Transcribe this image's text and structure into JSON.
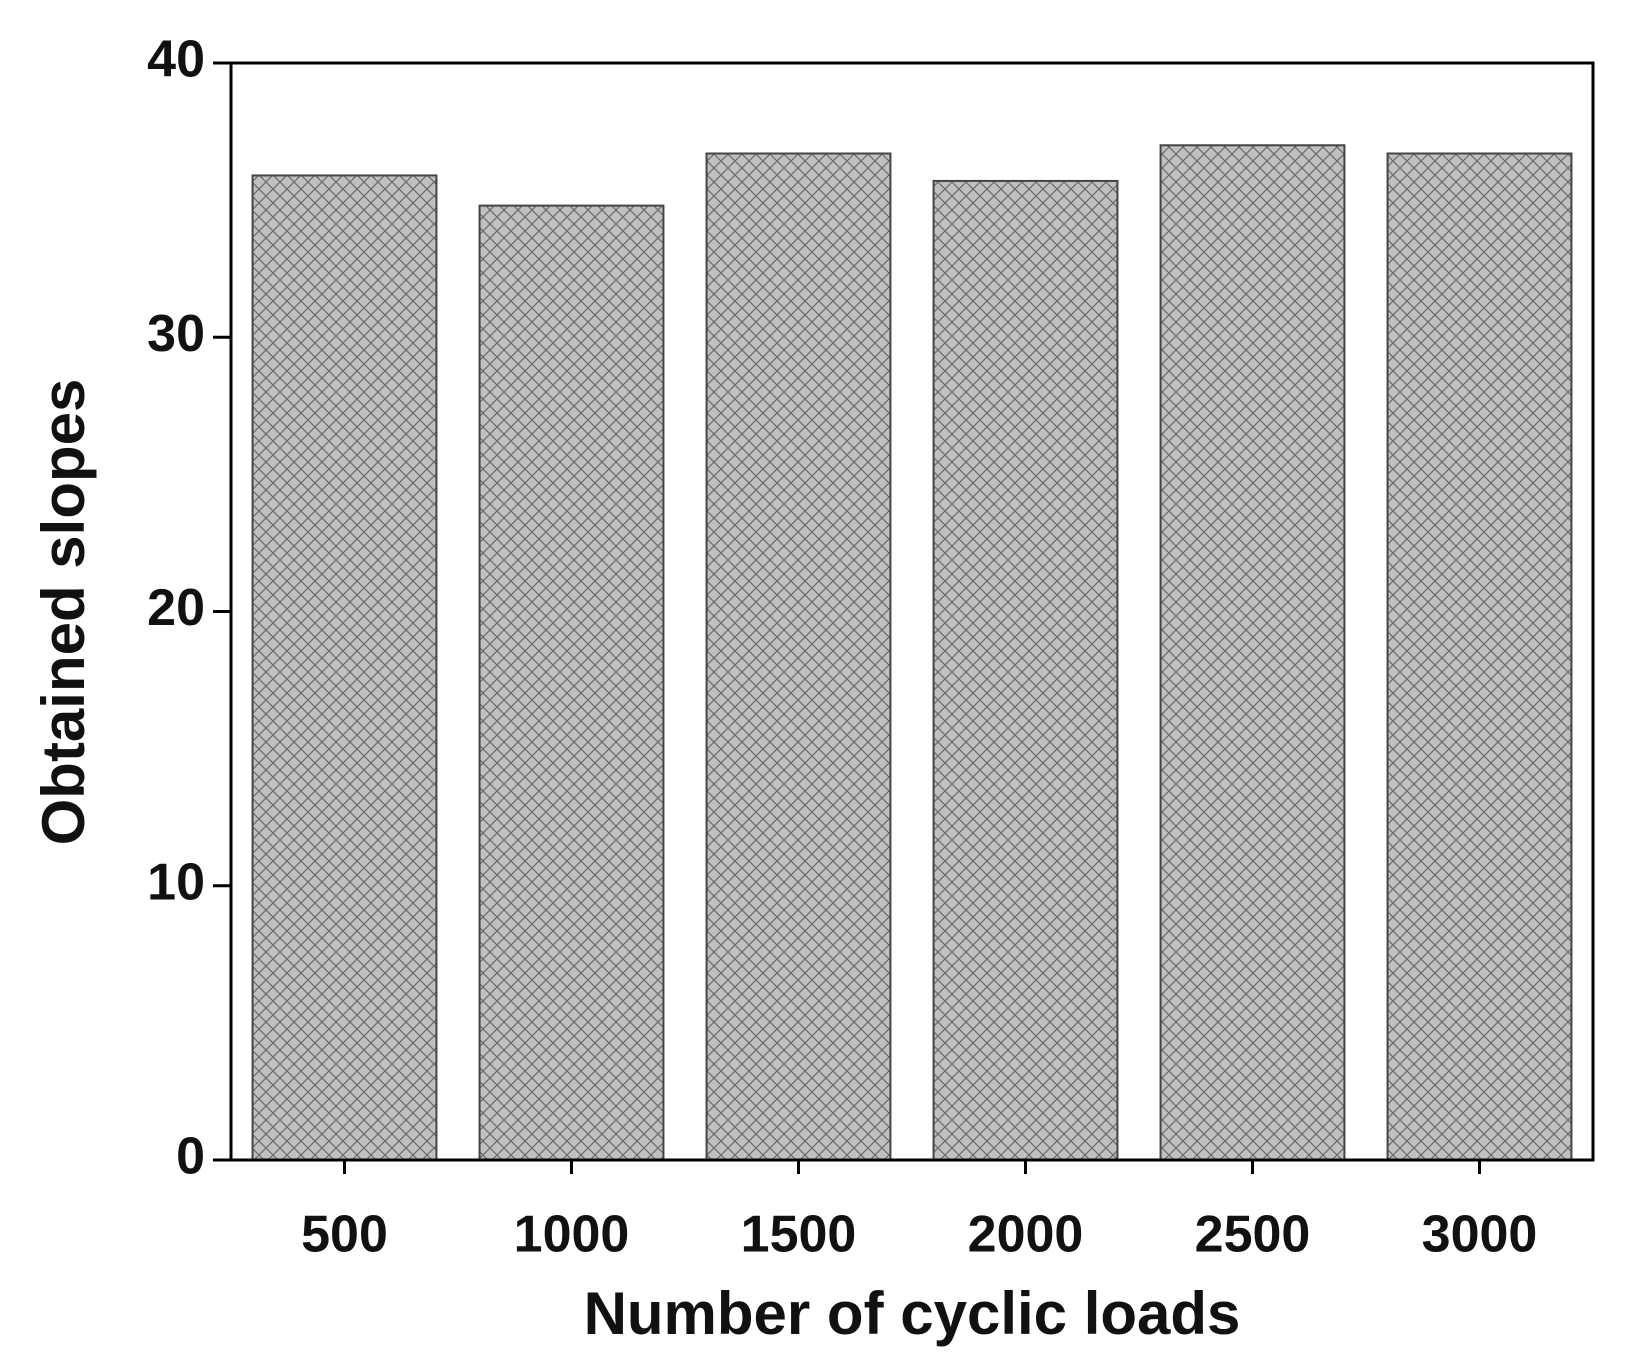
{
  "chart_data": {
    "type": "bar",
    "x_label": "Number of cyclic loads",
    "y_label": "Obtained slopes",
    "categories": [
      "500",
      "1000",
      "1500",
      "2000",
      "2500",
      "3000"
    ],
    "values": [
      35.9,
      34.8,
      36.7,
      35.7,
      37.0,
      36.7
    ],
    "color": "#c0c0c0",
    "ylim": [
      0,
      40
    ],
    "yticks": [
      0,
      10,
      20,
      30,
      40
    ]
  }
}
